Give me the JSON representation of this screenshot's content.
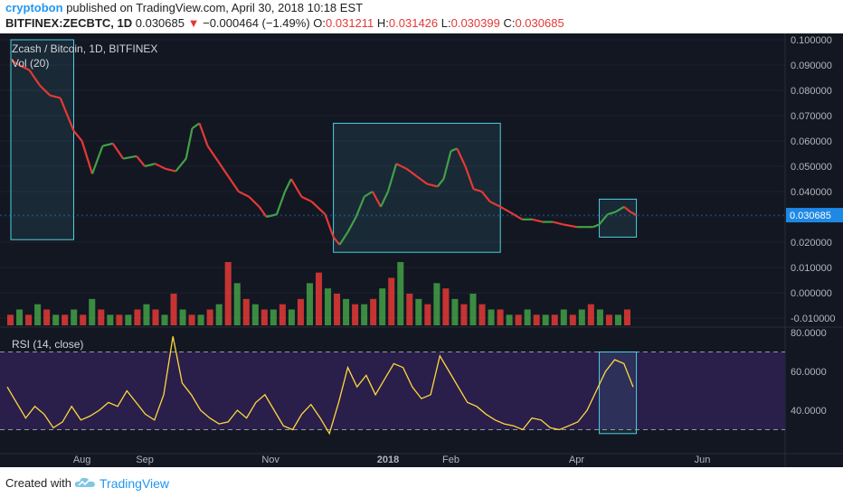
{
  "header": {
    "author": "cryptobon",
    "published": "published on TradingView.com, April 30, 2018 10:18 EST",
    "ticker": "BITFINEX:ZECBTC, 1D",
    "last": "0.030685",
    "change_arrow": "▼",
    "change": "−0.000464 (−1.49%)",
    "open_label": "O:",
    "open_value": "0.031211",
    "high_label": "H:",
    "high_value": "0.031426",
    "low_label": "L:",
    "low_value": "0.030399",
    "close_label": "C:",
    "close_value": "0.030685"
  },
  "legend": {
    "title": "Zcash / Bitcoin, 1D, BITFINEX",
    "volume": "Vol (20)",
    "rsi": "RSI (14, close)"
  },
  "footer": {
    "created": "Created with",
    "brand": "TradingView",
    "logo_icon": "tradingview-cloud-icon"
  },
  "chart_data": {
    "type": "line",
    "price_axis": {
      "ticks": [
        "0.100000",
        "0.090000",
        "0.080000",
        "0.070000",
        "0.060000",
        "0.050000",
        "0.040000",
        "0.030000",
        "0.020000",
        "0.010000",
        "0.000000",
        "-0.010000"
      ],
      "range": [
        -0.01,
        0.1
      ]
    },
    "last_price_label": "0.030685",
    "rsi_axis": {
      "ticks": [
        "80.0000",
        "60.0000",
        "40.0000"
      ],
      "range": [
        20,
        80
      ],
      "upper_band": 70,
      "lower_band": 30
    },
    "x_ticks": [
      "Aug",
      "Sep",
      "Nov",
      "2018",
      "Feb",
      "Apr",
      "Jun"
    ],
    "price_series": {
      "name": "ZECBTC",
      "points": [
        [
          "Jul 1",
          0.092
        ],
        [
          "Jul 5",
          0.09
        ],
        [
          "Jul 10",
          0.088
        ],
        [
          "Jul 15",
          0.082
        ],
        [
          "Jul 20",
          0.078
        ],
        [
          "Jul 25",
          0.077
        ],
        [
          "Aug 1",
          0.064
        ],
        [
          "Aug 5",
          0.06
        ],
        [
          "Aug 10",
          0.047
        ],
        [
          "Aug 15",
          0.058
        ],
        [
          "Aug 20",
          0.059
        ],
        [
          "Aug 25",
          0.053
        ],
        [
          "Sep 1",
          0.054
        ],
        [
          "Sep 5",
          0.05
        ],
        [
          "Sep 10",
          0.051
        ],
        [
          "Sep 15",
          0.049
        ],
        [
          "Sep 20",
          0.048
        ],
        [
          "Sep 25",
          0.053
        ],
        [
          "Sep 28",
          0.065
        ],
        [
          "Oct 1",
          0.067
        ],
        [
          "Oct 5",
          0.058
        ],
        [
          "Oct 10",
          0.052
        ],
        [
          "Oct 15",
          0.046
        ],
        [
          "Oct 20",
          0.04
        ],
        [
          "Oct 25",
          0.038
        ],
        [
          "Oct 30",
          0.034
        ],
        [
          "Nov 3",
          0.03
        ],
        [
          "Nov 8",
          0.031
        ],
        [
          "Nov 12",
          0.04
        ],
        [
          "Nov 15",
          0.045
        ],
        [
          "Nov 20",
          0.038
        ],
        [
          "Nov 25",
          0.036
        ],
        [
          "Dec 1",
          0.031
        ],
        [
          "Dec 5",
          0.022
        ],
        [
          "Dec 8",
          0.019
        ],
        [
          "Dec 12",
          0.024
        ],
        [
          "Dec 16",
          0.03
        ],
        [
          "Dec 20",
          0.038
        ],
        [
          "Dec 24",
          0.04
        ],
        [
          "Dec 28",
          0.034
        ],
        [
          "Jan 1",
          0.04
        ],
        [
          "Jan 5",
          0.051
        ],
        [
          "Jan 10",
          0.049
        ],
        [
          "Jan 15",
          0.046
        ],
        [
          "Jan 20",
          0.043
        ],
        [
          "Jan 25",
          0.042
        ],
        [
          "Jan 28",
          0.045
        ],
        [
          "Feb 1",
          0.056
        ],
        [
          "Feb 4",
          0.057
        ],
        [
          "Feb 8",
          0.05
        ],
        [
          "Feb 12",
          0.041
        ],
        [
          "Feb 16",
          0.04
        ],
        [
          "Feb 20",
          0.036
        ],
        [
          "Feb 25",
          0.034
        ],
        [
          "Mar 1",
          0.031
        ],
        [
          "Mar 5",
          0.029
        ],
        [
          "Mar 10",
          0.029
        ],
        [
          "Mar 15",
          0.028
        ],
        [
          "Mar 20",
          0.028
        ],
        [
          "Mar 25",
          0.027
        ],
        [
          "Apr 1",
          0.026
        ],
        [
          "Apr 5",
          0.026
        ],
        [
          "Apr 9",
          0.026
        ],
        [
          "Apr 12",
          0.027
        ],
        [
          "Apr 16",
          0.031
        ],
        [
          "Apr 20",
          0.032
        ],
        [
          "Apr 24",
          0.034
        ],
        [
          "Apr 27",
          0.032
        ],
        [
          "Apr 30",
          0.030685
        ]
      ]
    },
    "volume_series": {
      "name": "Vol (20)",
      "values": [
        2,
        3,
        2,
        4,
        3,
        2,
        2,
        3,
        2,
        5,
        3,
        2,
        2,
        2,
        3,
        4,
        3,
        2,
        6,
        3,
        2,
        2,
        3,
        4,
        12,
        8,
        5,
        4,
        3,
        3,
        4,
        3,
        5,
        8,
        10,
        7,
        6,
        5,
        4,
        4,
        5,
        7,
        9,
        12,
        6,
        5,
        4,
        8,
        7,
        5,
        4,
        6,
        4,
        3,
        3,
        2,
        2,
        3,
        2,
        2,
        2,
        3,
        2,
        3,
        4,
        3,
        2,
        2,
        3
      ],
      "colors": [
        "#e53935",
        "#43a047"
      ]
    },
    "rsi_series": {
      "name": "RSI",
      "values": [
        52,
        44,
        36,
        42,
        38,
        31,
        34,
        42,
        35,
        37,
        40,
        44,
        42,
        50,
        44,
        38,
        35,
        48,
        78,
        54,
        48,
        40,
        36,
        33,
        34,
        40,
        36,
        44,
        48,
        40,
        32,
        30,
        38,
        43,
        36,
        28,
        44,
        62,
        52,
        58,
        48,
        56,
        64,
        62,
        52,
        46,
        48,
        68,
        60,
        52,
        44,
        42,
        38,
        35,
        33,
        32,
        30,
        36,
        35,
        31,
        30,
        32,
        34,
        40,
        50,
        60,
        66,
        64,
        52
      ]
    },
    "highlight_boxes": [
      {
        "from": "Jul 1",
        "to": "Aug 1",
        "price_low": 0.021,
        "price_high": 0.1
      },
      {
        "from": "Dec 5",
        "to": "Feb 25",
        "price_low": 0.016,
        "price_high": 0.067
      },
      {
        "from": "Apr 12",
        "to": "Apr 30",
        "price_low": 0.022,
        "price_high": 0.037
      },
      {
        "from": "Apr 12",
        "to": "Apr 30",
        "rsi_low": 28,
        "rsi_high": 70
      }
    ],
    "grid": true,
    "colors": {
      "background": "#131722",
      "grid": "#1e2230",
      "up": "#43a047",
      "down": "#e53935",
      "rsi_line": "#ffd740",
      "rsi_band_fill": "#2a1f4a",
      "box_stroke": "#4dd0e1",
      "last_price_bg": "#1e88e5"
    }
  }
}
